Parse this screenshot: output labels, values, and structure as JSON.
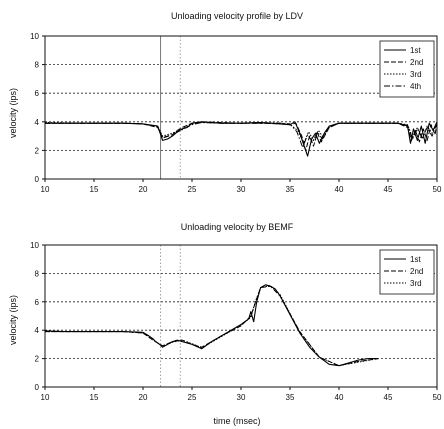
{
  "chart_data": [
    {
      "type": "line",
      "title": "Unloading velocity profile by LDV",
      "xlabel": "",
      "ylabel": "velocity (ips)",
      "xlim": [
        10,
        50
      ],
      "ylim": [
        0,
        10
      ],
      "xticks": [
        10,
        15,
        20,
        25,
        30,
        35,
        40,
        45,
        50
      ],
      "yticks": [
        0,
        2,
        4,
        6,
        8,
        10
      ],
      "grid": "y-dashed",
      "legend_position": "top-right",
      "vertical_markers": [
        {
          "x": 21.8,
          "style": "solid"
        },
        {
          "x": 23.8,
          "style": "dotted"
        }
      ],
      "series": [
        {
          "name": "1st",
          "color": "#000000",
          "x": [
            10,
            14,
            18,
            20,
            21.5,
            22,
            22.5,
            23,
            23.5,
            24,
            24.5,
            25,
            26,
            28,
            30,
            32,
            34,
            35,
            35.5,
            36,
            36.4,
            36.8,
            37.2,
            37.6,
            38,
            38.5,
            39,
            40,
            42,
            44,
            46,
            47,
            47.3,
            47.6,
            48,
            48.4,
            48.8,
            49.2,
            49.6,
            50
          ],
          "y": [
            3.9,
            3.9,
            3.9,
            3.85,
            3.7,
            2.7,
            2.8,
            3.0,
            3.3,
            3.5,
            3.6,
            3.9,
            4.0,
            3.9,
            3.9,
            3.95,
            3.85,
            3.8,
            4.0,
            3.2,
            2.4,
            1.6,
            2.8,
            3.2,
            2.5,
            3.2,
            3.7,
            3.9,
            3.9,
            3.9,
            3.9,
            3.7,
            2.5,
            3.5,
            2.7,
            3.7,
            2.5,
            3.9,
            3.4,
            4.0
          ]
        },
        {
          "name": "2nd",
          "color": "#000000",
          "x": [
            10,
            14,
            18,
            20,
            21.5,
            22,
            22.5,
            23,
            23.5,
            24,
            25,
            26,
            28,
            30,
            32,
            34,
            35,
            35.6,
            36.2,
            36.6,
            37.0,
            37.4,
            37.8,
            38.2,
            39,
            40,
            42,
            44,
            46,
            47,
            47.4,
            47.8,
            48.2,
            48.6,
            49,
            49.4,
            49.8,
            50
          ],
          "y": [
            3.9,
            3.9,
            3.9,
            3.85,
            3.6,
            2.9,
            3.0,
            3.1,
            3.4,
            3.6,
            3.9,
            4.0,
            3.95,
            3.9,
            3.9,
            3.85,
            3.8,
            3.9,
            3.0,
            2.0,
            3.0,
            2.3,
            3.2,
            2.6,
            3.6,
            3.9,
            3.9,
            3.9,
            3.9,
            3.6,
            2.7,
            3.4,
            2.6,
            3.5,
            2.7,
            3.8,
            3.1,
            3.9
          ]
        },
        {
          "name": "3rd",
          "color": "#000000",
          "x": [
            10,
            14,
            18,
            20,
            21.5,
            22,
            23,
            24,
            25,
            26,
            28,
            30,
            32,
            34,
            35,
            35.8,
            36.4,
            36.9,
            37.4,
            37.9,
            38.4,
            39,
            40,
            42,
            44,
            46,
            47,
            47.5,
            48,
            48.5,
            49,
            49.5,
            50
          ],
          "y": [
            3.95,
            3.9,
            3.9,
            3.85,
            3.7,
            3.0,
            3.2,
            3.5,
            3.85,
            3.95,
            3.9,
            3.9,
            3.95,
            3.9,
            3.8,
            3.4,
            2.5,
            3.3,
            2.7,
            3.4,
            2.9,
            3.7,
            3.9,
            3.9,
            3.9,
            3.9,
            3.8,
            2.9,
            3.6,
            2.8,
            3.7,
            3.2,
            3.9
          ]
        },
        {
          "name": "4th",
          "color": "#000000",
          "x": [
            10,
            14,
            18,
            20,
            21.5,
            22,
            23,
            24,
            25,
            26,
            28,
            30,
            32,
            34,
            35,
            35.7,
            36.3,
            36.8,
            37.3,
            37.8,
            38.3,
            39,
            40,
            42,
            44,
            46,
            47,
            47.5,
            48,
            48.5,
            49,
            49.5,
            50
          ],
          "y": [
            3.9,
            3.9,
            3.9,
            3.85,
            3.65,
            2.85,
            3.1,
            3.45,
            3.8,
            3.95,
            3.9,
            3.9,
            3.9,
            3.9,
            3.85,
            3.3,
            2.2,
            3.1,
            2.6,
            3.3,
            2.8,
            3.6,
            3.9,
            3.9,
            3.9,
            3.9,
            3.75,
            2.8,
            3.5,
            2.9,
            3.6,
            3.0,
            3.9
          ]
        }
      ]
    },
    {
      "type": "line",
      "title": "Unloading velocity by BEMF",
      "xlabel": "time (msec)",
      "ylabel": "velocity (ips)",
      "xlim": [
        10,
        50
      ],
      "ylim": [
        0,
        10
      ],
      "xticks": [
        10,
        15,
        20,
        25,
        30,
        35,
        40,
        45,
        50
      ],
      "yticks": [
        0,
        2,
        4,
        6,
        8,
        10
      ],
      "grid": "y-dashed",
      "legend_position": "top-right",
      "vertical_markers": [
        {
          "x": 21.8,
          "style": "dotted"
        },
        {
          "x": 23.8,
          "style": "dotted"
        }
      ],
      "series": [
        {
          "name": "1st",
          "color": "#000000",
          "x": [
            10,
            12,
            14,
            16,
            18,
            20,
            20.6,
            21,
            21.3,
            21.7,
            22,
            22.5,
            23,
            23.5,
            24,
            24.5,
            25,
            26,
            27,
            28,
            29,
            30,
            30.8,
            31,
            31.3,
            31.6,
            32,
            32.5,
            33,
            33.5,
            34,
            35,
            36,
            37,
            38,
            39,
            40,
            41,
            42,
            43,
            44
          ],
          "y": [
            3.95,
            3.9,
            3.9,
            3.9,
            3.9,
            3.85,
            3.6,
            3.4,
            3.2,
            3.0,
            2.8,
            3.0,
            3.2,
            3.3,
            3.2,
            3.1,
            3.0,
            2.7,
            3.2,
            3.6,
            4.0,
            4.4,
            4.8,
            5.3,
            4.6,
            6.0,
            7.0,
            7.2,
            7.1,
            6.9,
            6.4,
            5.1,
            3.8,
            2.8,
            2.1,
            1.6,
            1.5,
            1.7,
            1.9,
            2.0,
            2.0
          ]
        },
        {
          "name": "2nd",
          "color": "#000000",
          "x": [
            10,
            14,
            18,
            20,
            21,
            22,
            23,
            24,
            25,
            26,
            28,
            30,
            31,
            31.5,
            32,
            33,
            34,
            36,
            38,
            40,
            42,
            44
          ],
          "y": [
            3.9,
            3.9,
            3.9,
            3.8,
            3.3,
            2.9,
            3.2,
            3.3,
            3.0,
            2.8,
            3.6,
            4.3,
            5.0,
            6.0,
            7.0,
            7.1,
            6.4,
            3.9,
            2.1,
            1.5,
            1.8,
            2.0
          ]
        },
        {
          "name": "3rd",
          "color": "#000000",
          "x": [
            10,
            14,
            18,
            20,
            21,
            22,
            23,
            24,
            25,
            26,
            28,
            30,
            31,
            31.5,
            32,
            33,
            34,
            36,
            38,
            40,
            42,
            44
          ],
          "y": [
            3.9,
            3.9,
            3.9,
            3.8,
            3.35,
            2.85,
            3.15,
            3.3,
            3.05,
            2.75,
            3.55,
            4.35,
            4.9,
            6.1,
            7.0,
            7.15,
            6.5,
            3.85,
            2.1,
            1.5,
            1.75,
            2.0
          ]
        }
      ]
    }
  ]
}
